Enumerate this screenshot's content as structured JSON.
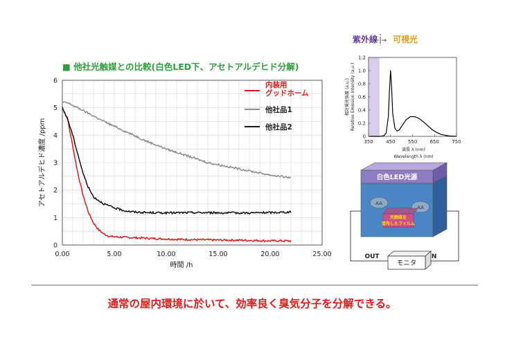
{
  "chart_data": [
    {
      "type": "line",
      "title": "■ 他社光触媒との比較(白色LED下、アセトアルデヒド分解)",
      "xlabel": "時間 /h",
      "ylabel": "アセトアルデヒド濃度 /ppm",
      "xlim": [
        0,
        25
      ],
      "ylim": [
        0,
        6
      ],
      "xticks": [
        "0.00",
        "5.00",
        "10.00",
        "15.00",
        "20.00",
        "25.00"
      ],
      "yticks": [
        "0",
        "1",
        "2",
        "3",
        "4",
        "5",
        "6"
      ],
      "grid": true,
      "legend_position": "top-right",
      "series": [
        {
          "name": "内装用 グッドホーム",
          "name_lines": [
            "内装用",
            "グッドホーム"
          ],
          "color": "#e31a1a",
          "x": [
            0,
            0.5,
            1,
            1.5,
            2,
            2.5,
            3,
            3.5,
            4,
            4.5,
            5,
            6,
            8,
            10,
            12,
            15,
            18,
            20,
            22
          ],
          "y": [
            5.0,
            4.6,
            3.6,
            2.6,
            1.8,
            1.2,
            0.8,
            0.55,
            0.4,
            0.32,
            0.3,
            0.28,
            0.25,
            0.22,
            0.2,
            0.18,
            0.17,
            0.15,
            0.15
          ]
        },
        {
          "name": "他社品1",
          "color": "#8c8c8c",
          "x": [
            0,
            0.5,
            2,
            4,
            6,
            8,
            10,
            12,
            14,
            16,
            18,
            20,
            22
          ],
          "y": [
            5.2,
            5.18,
            4.9,
            4.5,
            4.15,
            3.8,
            3.5,
            3.25,
            3.0,
            2.85,
            2.7,
            2.55,
            2.45
          ]
        },
        {
          "name": "他社品2",
          "color": "#111111",
          "x": [
            0,
            0.5,
            1,
            1.5,
            2,
            2.5,
            3,
            4,
            5,
            6,
            7,
            8,
            10,
            12,
            14,
            16,
            18,
            20,
            22
          ],
          "y": [
            5.0,
            4.6,
            4.0,
            3.3,
            2.6,
            2.1,
            1.75,
            1.5,
            1.35,
            1.25,
            1.2,
            1.18,
            1.17,
            1.18,
            1.18,
            1.17,
            1.17,
            1.18,
            1.2
          ]
        }
      ]
    },
    {
      "type": "line",
      "ylabel_lines": [
        "相対発光強度 (a.u.)",
        "Relative Emission Intensity (a.u.)"
      ],
      "xlabel_lines": [
        "波長 λ (nm)",
        "Wavelength λ (nm)"
      ],
      "xlim": [
        350,
        750
      ],
      "ylim": [
        0,
        1.2
      ],
      "xticks": [
        "350",
        "450",
        "550",
        "650",
        "750"
      ],
      "yticks": [
        "0",
        "0.2",
        "0.4",
        "0.6",
        "0.8",
        "1.0",
        "1.2"
      ],
      "series": [
        {
          "color": "#000000",
          "x": [
            350,
            400,
            420,
            430,
            440,
            445,
            450,
            455,
            460,
            470,
            480,
            490,
            500,
            520,
            540,
            560,
            580,
            600,
            620,
            640,
            660,
            680,
            700,
            720,
            750
          ],
          "y": [
            0,
            0,
            0.01,
            0.05,
            0.3,
            0.7,
            1.0,
            0.75,
            0.35,
            0.12,
            0.08,
            0.1,
            0.15,
            0.25,
            0.3,
            0.3,
            0.27,
            0.22,
            0.16,
            0.1,
            0.06,
            0.03,
            0.015,
            0.005,
            0
          ]
        }
      ],
      "uv_band": [
        350,
        400
      ]
    }
  ],
  "spectrum_header": {
    "uv": "紫外線",
    "vis": "可視光",
    "arrow": "←|→"
  },
  "device": {
    "light_label": "白色LED光源",
    "film_line1": "光触媒を",
    "film_line2": "塗布したフィルム",
    "gas_label": "AA",
    "out_label": "OUT",
    "in_label": "IN",
    "monitor_label": "モニタ"
  },
  "caption": "通常の屋内環境に於いて、効率良く臭気分子を分解できる。",
  "colors": {
    "title": "#2e9e3a",
    "caption": "#e31a1a",
    "uv": "#6a3fa0",
    "vis": "#e39a10",
    "led": "#8e7cc3",
    "chamber": "#4a86c6"
  }
}
